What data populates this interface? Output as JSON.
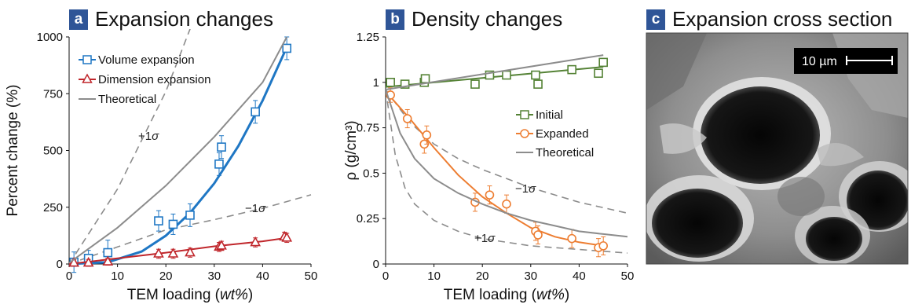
{
  "panels": {
    "a": {
      "letter": "a",
      "title": "Expansion changes"
    },
    "b": {
      "letter": "b",
      "title": "Density changes"
    },
    "c": {
      "letter": "c",
      "title": "Expansion cross section",
      "scale_bar_label": "10 µm"
    }
  },
  "chart_data": [
    {
      "type": "scatter",
      "panel": "a",
      "xlabel": "TEM loading (wt%)",
      "ylabel": "Percent change (%)",
      "xlim": [
        0,
        50
      ],
      "ylim": [
        0,
        1000
      ],
      "xticks": [
        "0",
        "10",
        "20",
        "30",
        "40",
        "50"
      ],
      "yticks": [
        "0",
        "250",
        "500",
        "750",
        "1000"
      ],
      "legend_position": "top-left",
      "series": [
        {
          "name": "Volume expansion",
          "marker": "square",
          "color": "#1f77c4",
          "x": [
            1,
            4,
            8,
            18.5,
            21.5,
            25,
            31,
            31.5,
            38.5,
            45
          ],
          "y": [
            8,
            25,
            50,
            190,
            175,
            215,
            440,
            515,
            670,
            950
          ],
          "err": [
            45,
            35,
            55,
            45,
            45,
            50,
            50,
            50,
            50,
            50
          ],
          "fit_x": [
            0,
            8,
            15,
            20,
            25,
            30,
            35,
            40,
            45
          ],
          "fit_y": [
            0,
            8,
            55,
            125,
            225,
            355,
            520,
            720,
            955
          ]
        },
        {
          "name": "Dimension expansion",
          "marker": "triangle",
          "color": "#c0262b",
          "x": [
            1,
            4,
            8,
            18.5,
            21.5,
            25,
            31,
            31.5,
            38.5,
            44.5,
            45
          ],
          "y": [
            5,
            5,
            10,
            45,
            45,
            50,
            75,
            80,
            95,
            120,
            115
          ],
          "err": [
            15,
            15,
            15,
            20,
            20,
            20,
            20,
            20,
            20,
            20,
            20
          ],
          "fit_x": [
            0,
            10,
            20,
            30,
            40,
            45
          ],
          "fit_y": [
            0,
            25,
            50,
            78,
            100,
            115
          ]
        },
        {
          "name": "Theoretical",
          "marker": "none",
          "color": "#8c8c8c",
          "x": [
            0,
            10,
            20,
            30,
            40,
            45
          ],
          "y": [
            5,
            160,
            345,
            560,
            800,
            1000
          ]
        }
      ],
      "sigma_curves": [
        {
          "label": "+1σ",
          "x": [
            0,
            10,
            20,
            28
          ],
          "y": [
            0,
            330,
            760,
            1200
          ]
        },
        {
          "label": "−1σ",
          "x": [
            0,
            10,
            20,
            30,
            40,
            50
          ],
          "y": [
            0,
            75,
            150,
            195,
            245,
            305
          ]
        }
      ]
    },
    {
      "type": "scatter",
      "panel": "b",
      "xlabel": "TEM loading (wt%)",
      "ylabel": "ρ (g/cm³)",
      "xlim": [
        0,
        50
      ],
      "ylim": [
        0,
        1.25
      ],
      "xticks": [
        "0",
        "10",
        "20",
        "30",
        "40",
        "50"
      ],
      "yticks": [
        "0",
        "0.25",
        "0.5",
        "0.75",
        "1",
        "1.25"
      ],
      "legend_position": "middle-right",
      "series": [
        {
          "name": "Initial",
          "marker": "square",
          "color": "#548235",
          "x": [
            1,
            4,
            8,
            8.2,
            18.5,
            21.5,
            25,
            31,
            31.5,
            38.5,
            44,
            45
          ],
          "y": [
            1.0,
            0.99,
            1.0,
            1.02,
            0.99,
            1.04,
            1.04,
            1.04,
            0.99,
            1.07,
            1.05,
            1.11
          ],
          "err": [
            0.02,
            0.02,
            0.02,
            0.02,
            0.02,
            0.02,
            0.02,
            0.02,
            0.02,
            0.02,
            0.02,
            0.02
          ],
          "fit_x": [
            0,
            45
          ],
          "fit_y": [
            0.975,
            1.085
          ]
        },
        {
          "name": "Expanded",
          "marker": "circle",
          "color": "#ed7d31",
          "x": [
            1,
            4.5,
            8,
            8.5,
            18.5,
            21.5,
            25,
            31,
            31.5,
            38.5,
            44,
            45
          ],
          "y": [
            0.93,
            0.8,
            0.66,
            0.71,
            0.34,
            0.38,
            0.33,
            0.18,
            0.16,
            0.14,
            0.09,
            0.1
          ],
          "err": [
            0.04,
            0.05,
            0.05,
            0.05,
            0.05,
            0.05,
            0.05,
            0.05,
            0.05,
            0.05,
            0.05,
            0.05
          ],
          "fit_x": [
            0,
            5,
            10,
            15,
            20,
            25,
            30,
            35,
            40,
            45
          ],
          "fit_y": [
            0.95,
            0.8,
            0.64,
            0.49,
            0.37,
            0.28,
            0.2,
            0.15,
            0.12,
            0.1
          ]
        },
        {
          "name": "Theoretical",
          "marker": "none",
          "color": "#8c8c8c",
          "x": [
            0,
            45
          ],
          "y": [
            0.96,
            1.15
          ],
          "x2": [
            0,
            3,
            6,
            10,
            15,
            20,
            25,
            30,
            35,
            40,
            45,
            50
          ],
          "y2": [
            0.96,
            0.72,
            0.58,
            0.47,
            0.39,
            0.33,
            0.28,
            0.24,
            0.21,
            0.18,
            0.165,
            0.15
          ],
          "note": "theoretical line extends to x=50, y=1.17"
        }
      ],
      "sigma_curves": [
        {
          "label": "−1σ",
          "x": [
            0,
            5,
            10,
            15,
            20,
            25,
            30,
            35,
            40,
            45,
            50
          ],
          "y": [
            0.96,
            0.78,
            0.66,
            0.58,
            0.52,
            0.47,
            0.42,
            0.38,
            0.34,
            0.31,
            0.28
          ]
        },
        {
          "label": "+1σ",
          "x": [
            0,
            2,
            4,
            6,
            10,
            15,
            20,
            25,
            30,
            40,
            50
          ],
          "y": [
            0.96,
            0.6,
            0.42,
            0.33,
            0.24,
            0.18,
            0.14,
            0.12,
            0.1,
            0.08,
            0.06
          ]
        }
      ]
    }
  ]
}
